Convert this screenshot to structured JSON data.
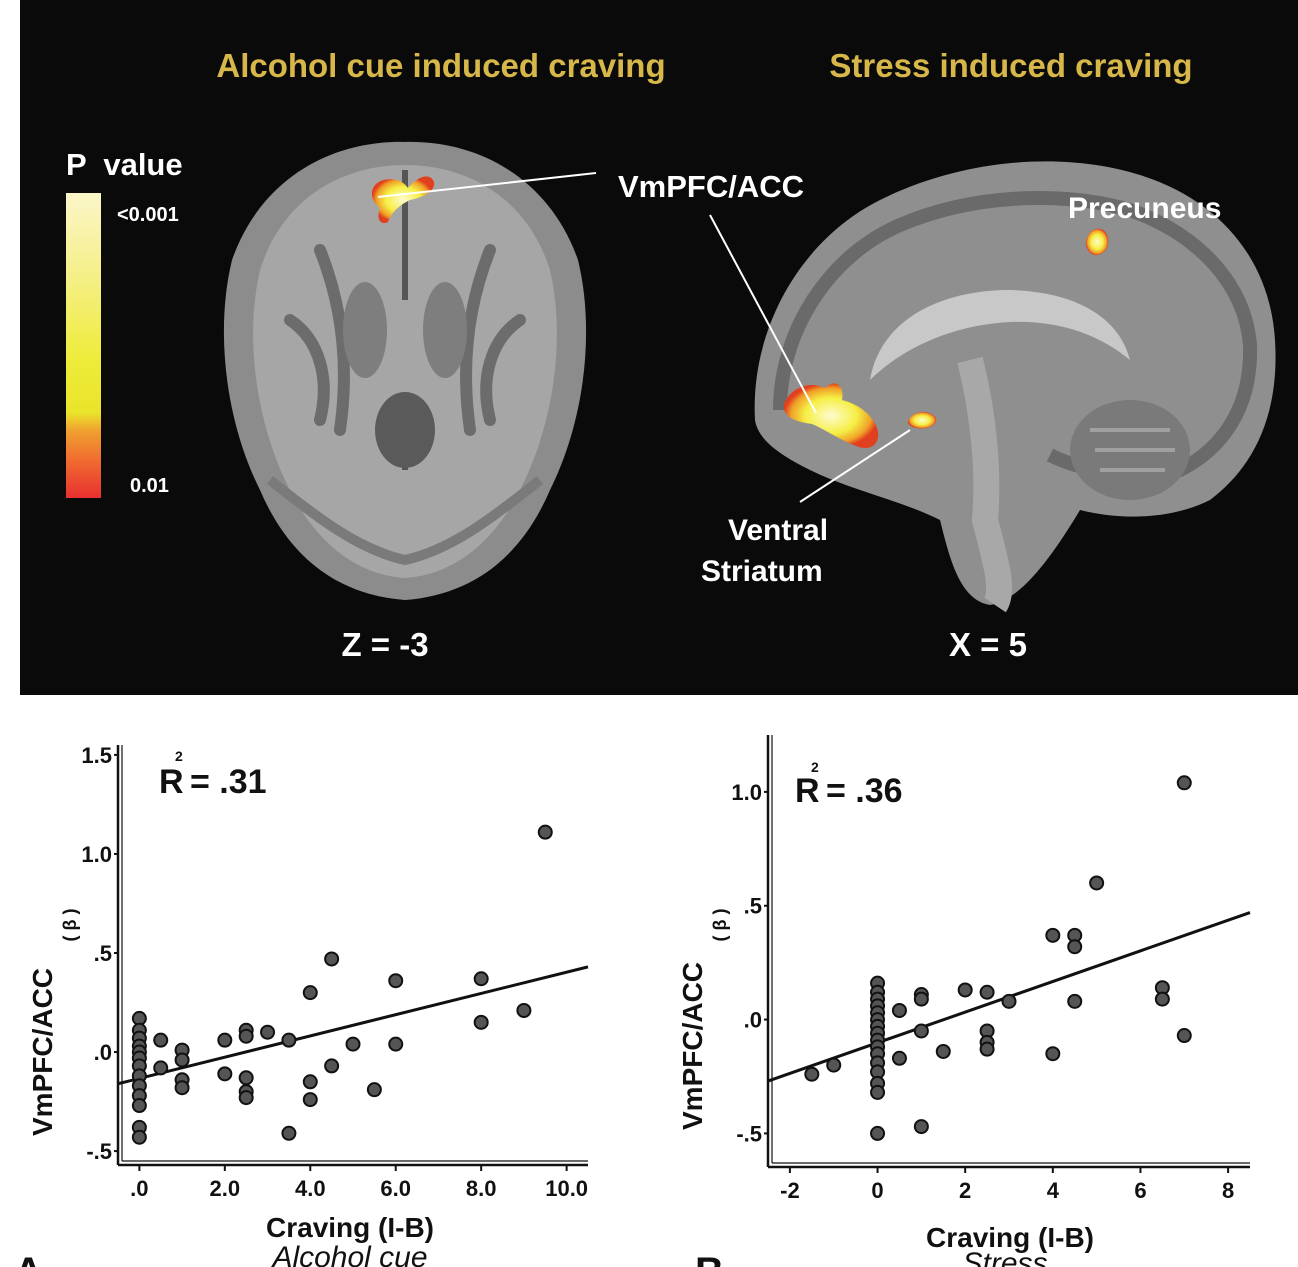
{
  "brain": {
    "title_left": "Alcohol cue induced craving",
    "title_right": "Stress induced craving",
    "legend_title": "P  value",
    "legend_top": "<0.001",
    "legend_bottom": "0.01",
    "label_vmpfc": "VmPFC/ACC",
    "label_precuneus": "Precuneus",
    "label_ventral": "Ventral",
    "label_striatum": "Striatum",
    "coord_left": "Z = -3",
    "coord_right": "X = 5",
    "colors": {
      "background": "#0a0a0a",
      "title": "#d8b74a",
      "activation": "#f5f04a",
      "activation_edge": "#e8402a"
    }
  },
  "chart_data": [
    {
      "type": "scatter",
      "panel_label": "A",
      "subtitle": "Alcohol cue",
      "xlabel": "Craving (I-B)",
      "ylabel": "VmPFC/ACC",
      "ylabel_sub": "( β )",
      "r2_label": "R",
      "r2_sup": "2",
      "r2_value": "= .31",
      "xlim": [
        -0.5,
        10.5
      ],
      "ylim": [
        -0.55,
        1.55
      ],
      "xticks": [
        0,
        2,
        4,
        6,
        8,
        10
      ],
      "xtick_labels": [
        ".0",
        "2.0",
        "4.0",
        "6.0",
        "8.0",
        "10.0"
      ],
      "yticks": [
        -0.5,
        0,
        0.5,
        1.0,
        1.5
      ],
      "ytick_labels": [
        "-.5",
        ".0",
        ".5",
        "1.0",
        "1.5"
      ],
      "fit": {
        "x": [
          -0.5,
          10.5
        ],
        "y": [
          -0.16,
          0.43
        ]
      },
      "points": [
        [
          0,
          0.17
        ],
        [
          0,
          0.11
        ],
        [
          0,
          0.07
        ],
        [
          0,
          0.03
        ],
        [
          0,
          0.0
        ],
        [
          0,
          -0.03
        ],
        [
          0,
          -0.07
        ],
        [
          0,
          -0.12
        ],
        [
          0,
          -0.17
        ],
        [
          0,
          -0.22
        ],
        [
          0,
          -0.27
        ],
        [
          0,
          -0.38
        ],
        [
          0,
          -0.43
        ],
        [
          0.5,
          0.06
        ],
        [
          0.5,
          -0.08
        ],
        [
          1,
          0.01
        ],
        [
          1,
          -0.04
        ],
        [
          1,
          -0.14
        ],
        [
          1,
          -0.18
        ],
        [
          2,
          0.06
        ],
        [
          2,
          -0.11
        ],
        [
          2.5,
          0.11
        ],
        [
          2.5,
          0.08
        ],
        [
          2.5,
          -0.13
        ],
        [
          2.5,
          -0.2
        ],
        [
          2.5,
          -0.23
        ],
        [
          3,
          0.1
        ],
        [
          3.5,
          0.06
        ],
        [
          3.5,
          -0.41
        ],
        [
          4,
          0.3
        ],
        [
          4,
          -0.15
        ],
        [
          4,
          -0.24
        ],
        [
          4.5,
          0.47
        ],
        [
          4.5,
          -0.07
        ],
        [
          5,
          0.04
        ],
        [
          5.5,
          -0.19
        ],
        [
          6,
          0.36
        ],
        [
          6,
          0.04
        ],
        [
          8,
          0.37
        ],
        [
          8,
          0.15
        ],
        [
          9,
          0.21
        ],
        [
          9.5,
          1.11
        ]
      ]
    },
    {
      "type": "scatter",
      "panel_label": "B",
      "subtitle": "Stress",
      "xlabel": "Craving (I-B)",
      "ylabel": "VmPFC/ACC",
      "ylabel_sub": "( β )",
      "r2_label": "R",
      "r2_sup": "2",
      "r2_value": "= .36",
      "xlim": [
        -2.5,
        8.5
      ],
      "ylim": [
        -0.63,
        1.25
      ],
      "xticks": [
        -2,
        0,
        2,
        4,
        6,
        8
      ],
      "xtick_labels": [
        "-2",
        "0",
        "2",
        "4",
        "6",
        "8"
      ],
      "yticks": [
        -0.5,
        0,
        0.5,
        1.0
      ],
      "ytick_labels": [
        "-.5",
        ".0",
        ".5",
        "1.0"
      ],
      "fit": {
        "x": [
          -2.5,
          8.5
        ],
        "y": [
          -0.27,
          0.47
        ]
      },
      "points": [
        [
          -1.5,
          -0.24
        ],
        [
          -1,
          -0.2
        ],
        [
          0,
          0.16
        ],
        [
          0,
          0.12
        ],
        [
          0,
          0.09
        ],
        [
          0,
          0.06
        ],
        [
          0,
          0.03
        ],
        [
          0,
          0.0
        ],
        [
          0,
          -0.03
        ],
        [
          0,
          -0.06
        ],
        [
          0,
          -0.09
        ],
        [
          0,
          -0.12
        ],
        [
          0,
          -0.15
        ],
        [
          0,
          -0.19
        ],
        [
          0,
          -0.23
        ],
        [
          0,
          -0.28
        ],
        [
          0,
          -0.32
        ],
        [
          0,
          -0.5
        ],
        [
          0.5,
          0.04
        ],
        [
          0.5,
          -0.17
        ],
        [
          1,
          0.11
        ],
        [
          1,
          0.09
        ],
        [
          1,
          -0.05
        ],
        [
          1,
          -0.47
        ],
        [
          1.5,
          -0.14
        ],
        [
          2,
          0.13
        ],
        [
          2.5,
          0.12
        ],
        [
          2.5,
          -0.05
        ],
        [
          2.5,
          -0.1
        ],
        [
          2.5,
          -0.13
        ],
        [
          3,
          0.08
        ],
        [
          4,
          0.37
        ],
        [
          4,
          -0.15
        ],
        [
          4.5,
          0.37
        ],
        [
          4.5,
          0.32
        ],
        [
          4.5,
          0.08
        ],
        [
          5,
          0.6
        ],
        [
          6.5,
          0.14
        ],
        [
          6.5,
          0.09
        ],
        [
          7,
          1.04
        ],
        [
          7,
          -0.07
        ]
      ]
    }
  ]
}
